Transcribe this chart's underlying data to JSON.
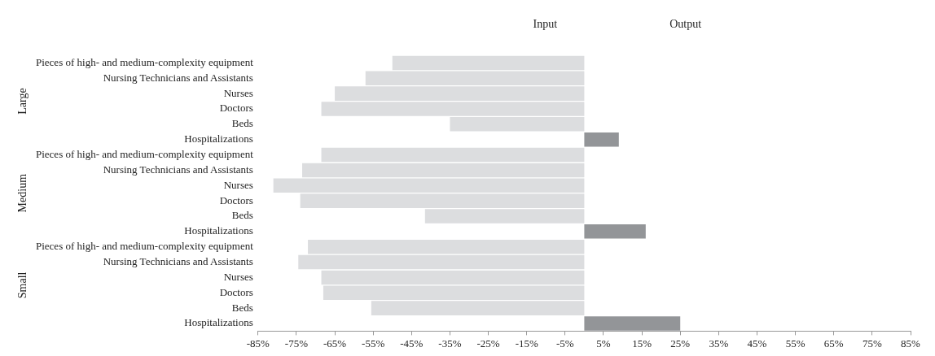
{
  "chart_data": {
    "type": "bar",
    "orientation": "horizontal",
    "stacked": true,
    "categories": [
      "Pieces of high- and medium-complexity equipment",
      "Nursing Technicians and Assistants",
      "Nurses",
      "Doctors",
      "Beds",
      "Hospitalizations",
      "Pieces of high- and medium-complexity equipment",
      "Nursing Technicians and Assistants",
      "Nurses",
      "Doctors",
      "Beds",
      "Hospitalizations",
      "Pieces of high- and medium-complexity equipment",
      "Nursing Technicians and Assistants",
      "Nurses",
      "Doctors",
      "Beds",
      "Hospitalizations"
    ],
    "series": [
      {
        "color": "#dcdddf",
        "values": [
          -50,
          -57,
          -65,
          -68.5,
          -35,
          null,
          -68.5,
          -73.5,
          -81,
          -74,
          -41.5,
          null,
          -72,
          -74.5,
          -68.5,
          -68,
          -55.5,
          null
        ]
      },
      {
        "color": "#939598",
        "values": [
          null,
          null,
          null,
          null,
          null,
          9,
          null,
          null,
          null,
          null,
          null,
          16,
          null,
          null,
          null,
          null,
          null,
          25
        ]
      }
    ],
    "xlim": [
      -85,
      85
    ],
    "xticks": [
      {
        "value": -85,
        "label": "-85%"
      },
      {
        "value": -75,
        "label": "-75%"
      },
      {
        "value": -65,
        "label": "-65%"
      },
      {
        "value": -55,
        "label": "-55%"
      },
      {
        "value": -45,
        "label": "-45%"
      },
      {
        "value": -35,
        "label": "-35%"
      },
      {
        "value": -25,
        "label": "-25%"
      },
      {
        "value": -15,
        "label": "-15%"
      },
      {
        "value": -5,
        "label": "-5%"
      },
      {
        "value": 5,
        "label": "5%"
      },
      {
        "value": 15,
        "label": "15%"
      },
      {
        "value": 25,
        "label": "25%"
      },
      {
        "value": 35,
        "label": "35%"
      },
      {
        "value": 45,
        "label": "45%"
      },
      {
        "value": 55,
        "label": "55%"
      },
      {
        "value": 65,
        "label": "65%"
      },
      {
        "value": 75,
        "label": "75%"
      },
      {
        "value": 85,
        "label": "85%"
      }
    ],
    "annotations": [
      "Input",
      "Output",
      "Large",
      "Medium",
      "Small"
    ],
    "grid": false,
    "legend": false
  }
}
